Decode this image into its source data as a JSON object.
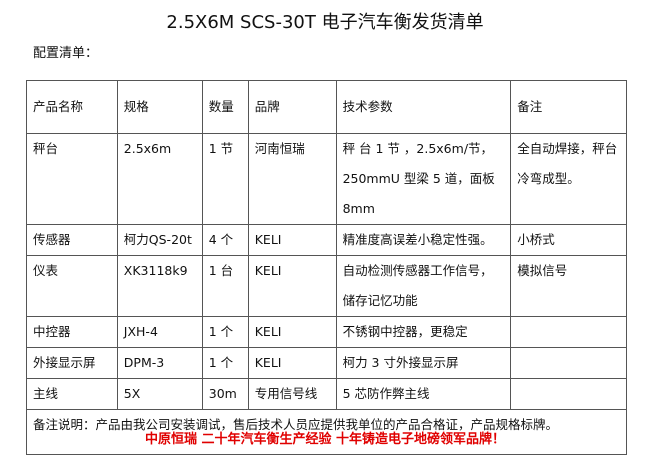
{
  "title": "2.5X6M SCS-30T 电子汽车衡发货清单",
  "subtitle": "配置清单：",
  "headers": [
    "产品名称",
    "规格",
    "数量",
    "品牌",
    "技术参数",
    "备注"
  ],
  "rows": [
    [
      "秤台",
      "2.5x6m",
      "1 节",
      "河南恒瑞",
      "秤 台 1 节 ，2.5x6m/节，250mmU 型梁 5 道，面板 8mm",
      "全自动焊接，秤台冷弯成型。"
    ],
    [
      "传感器",
      "柯力QS-20t",
      "4 个",
      "KELI",
      "精准度高误差小稳定性强。",
      "小桥式"
    ],
    [
      "仪表",
      "XK3118k9",
      "1 台",
      "KELI",
      "自动检测传感器工作信号，储存记忆功能",
      "模拟信号"
    ],
    [
      "中控器",
      "JXH-4",
      "1 个",
      "KELI",
      "不锈钢中控器，更稳定",
      ""
    ],
    [
      "外接显示屏",
      "DPM-3",
      "1 个",
      "KELI",
      "柯力 3 寸外接显示屏",
      ""
    ],
    [
      "主线",
      "5X",
      "30m",
      "专用信号线",
      "5 芯防作弊主线",
      ""
    ]
  ],
  "note": "备注说明：产品由我公司安装调试，售后技术人员应提供我单位的产品合格证，产品规格标牌。",
  "slogan": "中原恒瑞  二十年汽车衡生产经验  十年铸造电子地磅领军品牌！",
  "colors": {
    "slogan": "#e00000"
  }
}
